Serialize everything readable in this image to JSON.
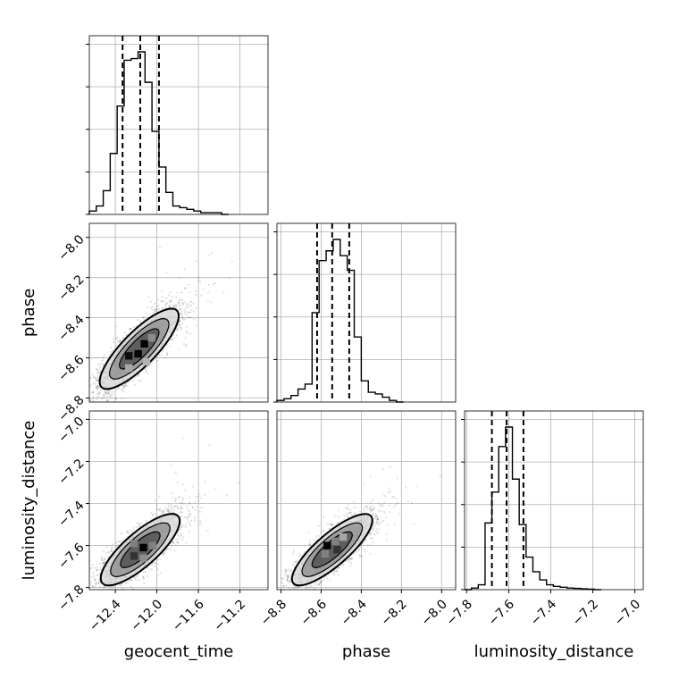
{
  "chart_data": {
    "type": "scatter",
    "parameters": [
      {
        "key": "geocent_time",
        "label": "geocent_time",
        "range": [
          -12.65,
          -10.93
        ],
        "ticks": [
          -12.4,
          -12.0,
          -11.6,
          -11.2
        ],
        "tick_labels": [
          "−12.4",
          "−12.0",
          "−11.6",
          "−11.2"
        ],
        "quantiles": [
          -12.33,
          -12.16,
          -11.98
        ],
        "hist_edges": [
          -12.65,
          -12.583,
          -12.516,
          -12.449,
          -12.382,
          -12.315,
          -12.248,
          -12.181,
          -12.114,
          -12.047,
          -11.98,
          -11.913,
          -11.846,
          -11.779,
          -11.712,
          -11.645,
          -11.578,
          -11.511,
          -11.444,
          -11.377,
          -11.31
        ],
        "hist_counts": [
          0.02,
          0.05,
          0.14,
          0.36,
          0.64,
          0.91,
          0.92,
          0.96,
          0.78,
          0.49,
          0.28,
          0.13,
          0.05,
          0.04,
          0.03,
          0.02,
          0.01,
          0.01,
          0.01,
          0.0
        ]
      },
      {
        "key": "phase",
        "label": "phase",
        "range": [
          -8.82,
          -7.93
        ],
        "ticks": [
          -8.8,
          -8.6,
          -8.4,
          -8.2,
          -8.0
        ],
        "tick_labels": [
          "−8.8",
          "−8.6",
          "−8.4",
          "−8.2",
          "−8.0"
        ],
        "quantiles": [
          -8.62,
          -8.545,
          -8.46
        ],
        "hist_edges": [
          -8.82,
          -8.785,
          -8.75,
          -8.715,
          -8.68,
          -8.645,
          -8.61,
          -8.575,
          -8.54,
          -8.505,
          -8.47,
          -8.435,
          -8.4,
          -8.365,
          -8.33,
          -8.295,
          -8.26,
          -8.225,
          -8.19
        ],
        "hist_counts": [
          0.01,
          0.02,
          0.04,
          0.08,
          0.11,
          0.55,
          0.87,
          0.93,
          1.0,
          0.9,
          0.81,
          0.4,
          0.13,
          0.06,
          0.05,
          0.03,
          0.01,
          0.0
        ]
      },
      {
        "key": "luminosity_distance",
        "label": "luminosity_distance",
        "range": [
          -7.81,
          -6.96
        ],
        "ticks": [
          -7.8,
          -7.6,
          -7.4,
          -7.2,
          -7.0
        ],
        "tick_labels": [
          "−7.8",
          "−7.6",
          "−7.4",
          "−7.2",
          "−7.0"
        ],
        "quantiles": [
          -7.68,
          -7.61,
          -7.53
        ],
        "hist_edges": [
          -7.81,
          -7.7775,
          -7.745,
          -7.7125,
          -7.68,
          -7.6475,
          -7.615,
          -7.5825,
          -7.55,
          -7.5175,
          -7.485,
          -7.4525,
          -7.42,
          -7.3875,
          -7.355,
          -7.3225,
          -7.29,
          -7.2575,
          -7.225,
          -7.1925,
          -7.16
        ],
        "hist_counts": [
          0.0,
          0.01,
          0.03,
          0.41,
          0.6,
          0.88,
          1.0,
          0.68,
          0.4,
          0.2,
          0.11,
          0.06,
          0.03,
          0.02,
          0.015,
          0.01,
          0.008,
          0.005,
          0.003,
          0.0
        ]
      }
    ],
    "pairs": [
      {
        "x": "geocent_time",
        "y": "phase",
        "center": [
          -12.17,
          -8.555
        ],
        "sigma": [
          0.19,
          0.1
        ],
        "correlation": 0.82,
        "cells": [
          [
            -12.27,
            -8.59,
            0.95
          ],
          [
            -12.18,
            -8.58,
            1.0
          ],
          [
            -12.12,
            -8.53,
            1.0
          ],
          [
            -12.05,
            -8.5,
            0.45
          ],
          [
            -12.27,
            -8.65,
            0.35
          ],
          [
            -12.1,
            -8.62,
            0.3
          ]
        ]
      },
      {
        "x": "geocent_time",
        "y": "luminosity_distance",
        "center": [
          -12.16,
          -7.62
        ],
        "sigma": [
          0.19,
          0.085
        ],
        "correlation": 0.8,
        "cells": [
          [
            -12.22,
            -7.65,
            0.8
          ],
          [
            -12.13,
            -7.61,
            1.0
          ],
          [
            -12.04,
            -7.6,
            0.5
          ],
          [
            -12.22,
            -7.59,
            0.5
          ],
          [
            -12.13,
            -7.66,
            0.45
          ]
        ]
      },
      {
        "x": "phase",
        "y": "luminosity_distance",
        "center": [
          -8.545,
          -7.62
        ],
        "sigma": [
          0.1,
          0.085
        ],
        "correlation": 0.82,
        "cells": [
          [
            -8.57,
            -7.6,
            1.0
          ],
          [
            -8.52,
            -7.62,
            0.8
          ],
          [
            -8.53,
            -7.58,
            0.5
          ],
          [
            -8.58,
            -7.64,
            0.5
          ],
          [
            -8.49,
            -7.56,
            0.35
          ]
        ]
      }
    ],
    "contour_levels_sigma": [
      1.0,
      1.5,
      2.0
    ],
    "contour_shades": [
      "#4a4a4a",
      "#8c8c8c",
      "#d8d8d8"
    ],
    "colors": {
      "line": "#000000",
      "scatter": "#000000",
      "grid": "#b0b0b0"
    }
  }
}
